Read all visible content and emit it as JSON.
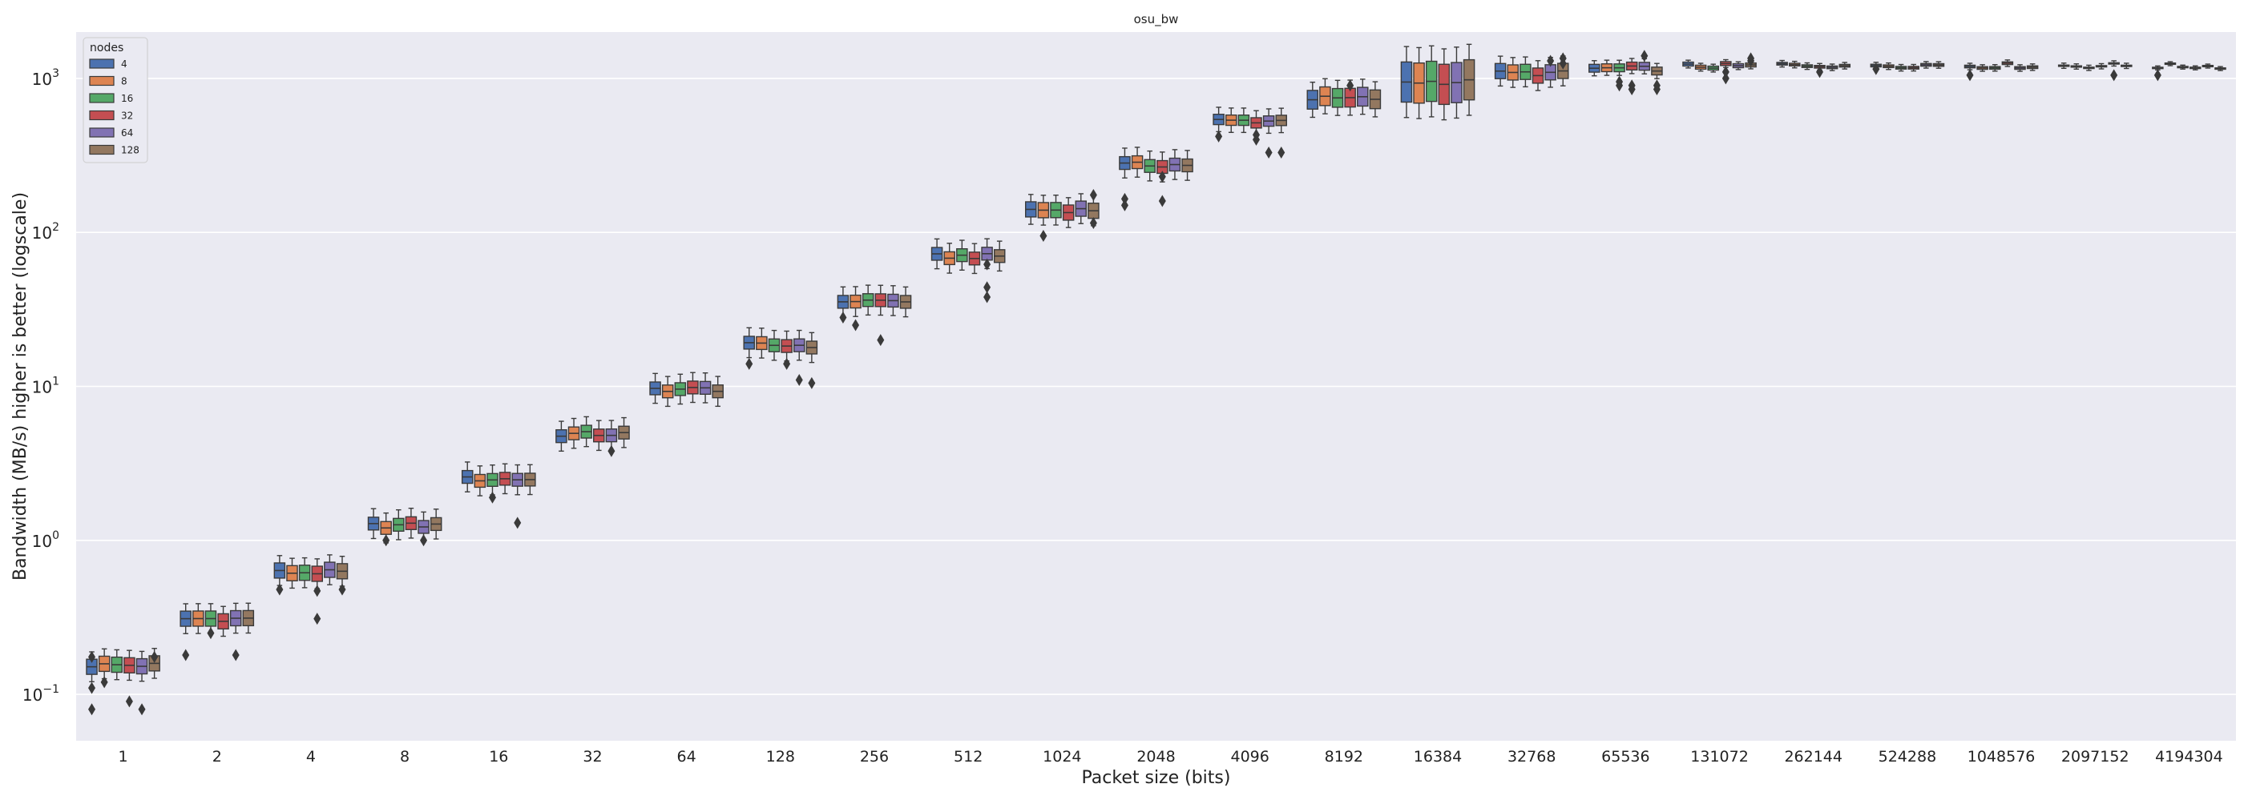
{
  "chart_data": {
    "type": "box",
    "title": "osu_bw",
    "xlabel": "Packet size (bits)",
    "ylabel": "Bandwidth (MB/s) higher is better (logscale)",
    "yscale": "log",
    "ylim": [
      0.05,
      2000
    ],
    "yticks": [
      {
        "value": 0.1,
        "base": "10",
        "exp": "−1"
      },
      {
        "value": 1,
        "base": "10",
        "exp": "0"
      },
      {
        "value": 10,
        "base": "10",
        "exp": "1"
      },
      {
        "value": 100,
        "base": "10",
        "exp": "2"
      },
      {
        "value": 1000,
        "base": "10",
        "exp": "3"
      }
    ],
    "grid": true,
    "legend": {
      "title": "nodes",
      "placement": "top-left"
    },
    "categories": [
      "1",
      "2",
      "4",
      "8",
      "16",
      "32",
      "64",
      "128",
      "256",
      "512",
      "1024",
      "2048",
      "4096",
      "8192",
      "16384",
      "32768",
      "65536",
      "131072",
      "262144",
      "524288",
      "1048576",
      "2097152",
      "4194304"
    ],
    "series": [
      {
        "name": "4",
        "color": "#4c72b0"
      },
      {
        "name": "8",
        "color": "#dd8452"
      },
      {
        "name": "16",
        "color": "#55a868"
      },
      {
        "name": "32",
        "color": "#c44e52"
      },
      {
        "name": "64",
        "color": "#8172b3"
      },
      {
        "name": "128",
        "color": "#937860"
      }
    ],
    "median_by_category": [
      0.155,
      0.31,
      0.62,
      1.25,
      2.5,
      4.9,
      9.6,
      18.5,
      36,
      70,
      140,
      275,
      530,
      740,
      950,
      1080,
      1160,
      1200,
      1220,
      1220,
      1210,
      1210,
      1200
    ],
    "box_spread_ratio": [
      1.12,
      1.12,
      1.12,
      1.1,
      1.1,
      1.1,
      1.1,
      1.1,
      1.1,
      1.1,
      1.12,
      1.1,
      1.08,
      1.15,
      1.35,
      1.12,
      1.06,
      1.03,
      1.02,
      1.02,
      1.02,
      1.01,
      1.01
    ],
    "whisker_spread_ratio": [
      1.25,
      1.25,
      1.25,
      1.25,
      1.25,
      1.25,
      1.25,
      1.25,
      1.25,
      1.25,
      1.25,
      1.25,
      1.2,
      1.3,
      1.7,
      1.25,
      1.12,
      1.06,
      1.05,
      1.05,
      1.05,
      1.04,
      1.03
    ],
    "outliers": [
      {
        "category": "1",
        "series": "4",
        "values": [
          0.08,
          0.11,
          0.175
        ]
      },
      {
        "category": "1",
        "series": "8",
        "values": [
          0.12
        ]
      },
      {
        "category": "1",
        "series": "32",
        "values": [
          0.09
        ]
      },
      {
        "category": "1",
        "series": "64",
        "values": [
          0.08
        ]
      },
      {
        "category": "1",
        "series": "128",
        "values": [
          0.175
        ]
      },
      {
        "category": "2",
        "series": "4",
        "values": [
          0.18
        ]
      },
      {
        "category": "2",
        "series": "16",
        "values": [
          0.25
        ]
      },
      {
        "category": "2",
        "series": "64",
        "values": [
          0.18
        ]
      },
      {
        "category": "4",
        "series": "4",
        "values": [
          0.48
        ]
      },
      {
        "category": "4",
        "series": "32",
        "values": [
          0.31,
          0.47
        ]
      },
      {
        "category": "4",
        "series": "128",
        "values": [
          0.48
        ]
      },
      {
        "category": "8",
        "series": "8",
        "values": [
          1.0
        ]
      },
      {
        "category": "8",
        "series": "64",
        "values": [
          1.0
        ]
      },
      {
        "category": "16",
        "series": "16",
        "values": [
          1.9
        ]
      },
      {
        "category": "16",
        "series": "64",
        "values": [
          1.3
        ]
      },
      {
        "category": "32",
        "series": "64",
        "values": [
          3.8
        ]
      },
      {
        "category": "128",
        "series": "4",
        "values": [
          14
        ]
      },
      {
        "category": "128",
        "series": "32",
        "values": [
          14
        ]
      },
      {
        "category": "128",
        "series": "64",
        "values": [
          11
        ]
      },
      {
        "category": "128",
        "series": "128",
        "values": [
          10.5
        ]
      },
      {
        "category": "256",
        "series": "4",
        "values": [
          28
        ]
      },
      {
        "category": "256",
        "series": "8",
        "values": [
          25
        ]
      },
      {
        "category": "256",
        "series": "32",
        "values": [
          20
        ]
      },
      {
        "category": "512",
        "series": "64",
        "values": [
          38,
          44,
          62
        ]
      },
      {
        "category": "1024",
        "series": "8",
        "values": [
          95
        ]
      },
      {
        "category": "1024",
        "series": "128",
        "values": [
          115,
          175
        ]
      },
      {
        "category": "2048",
        "series": "4",
        "values": [
          150,
          165
        ]
      },
      {
        "category": "2048",
        "series": "32",
        "values": [
          160,
          230
        ]
      },
      {
        "category": "4096",
        "series": "4",
        "values": [
          420
        ]
      },
      {
        "category": "4096",
        "series": "32",
        "values": [
          400,
          430
        ]
      },
      {
        "category": "4096",
        "series": "64",
        "values": [
          330
        ]
      },
      {
        "category": "4096",
        "series": "128",
        "values": [
          330
        ]
      },
      {
        "category": "8192",
        "series": "32",
        "values": [
          900
        ]
      },
      {
        "category": "32768",
        "series": "64",
        "values": [
          1300
        ]
      },
      {
        "category": "32768",
        "series": "128",
        "values": [
          1250,
          1350
        ]
      },
      {
        "category": "65536",
        "series": "16",
        "values": [
          900,
          950
        ]
      },
      {
        "category": "65536",
        "series": "32",
        "values": [
          850,
          900
        ]
      },
      {
        "category": "65536",
        "series": "64",
        "values": [
          1400
        ]
      },
      {
        "category": "65536",
        "series": "128",
        "values": [
          850,
          900
        ]
      },
      {
        "category": "131072",
        "series": "32",
        "values": [
          1000,
          1100
        ]
      },
      {
        "category": "131072",
        "series": "128",
        "values": [
          1300,
          1350
        ]
      },
      {
        "category": "262144",
        "series": "32",
        "values": [
          1100
        ]
      },
      {
        "category": "524288",
        "series": "4",
        "values": [
          1150
        ]
      },
      {
        "category": "1048576",
        "series": "4",
        "values": [
          1050
        ]
      },
      {
        "category": "2097152",
        "series": "64",
        "values": [
          1050
        ]
      },
      {
        "category": "4194304",
        "series": "4",
        "values": [
          1050
        ]
      }
    ]
  }
}
